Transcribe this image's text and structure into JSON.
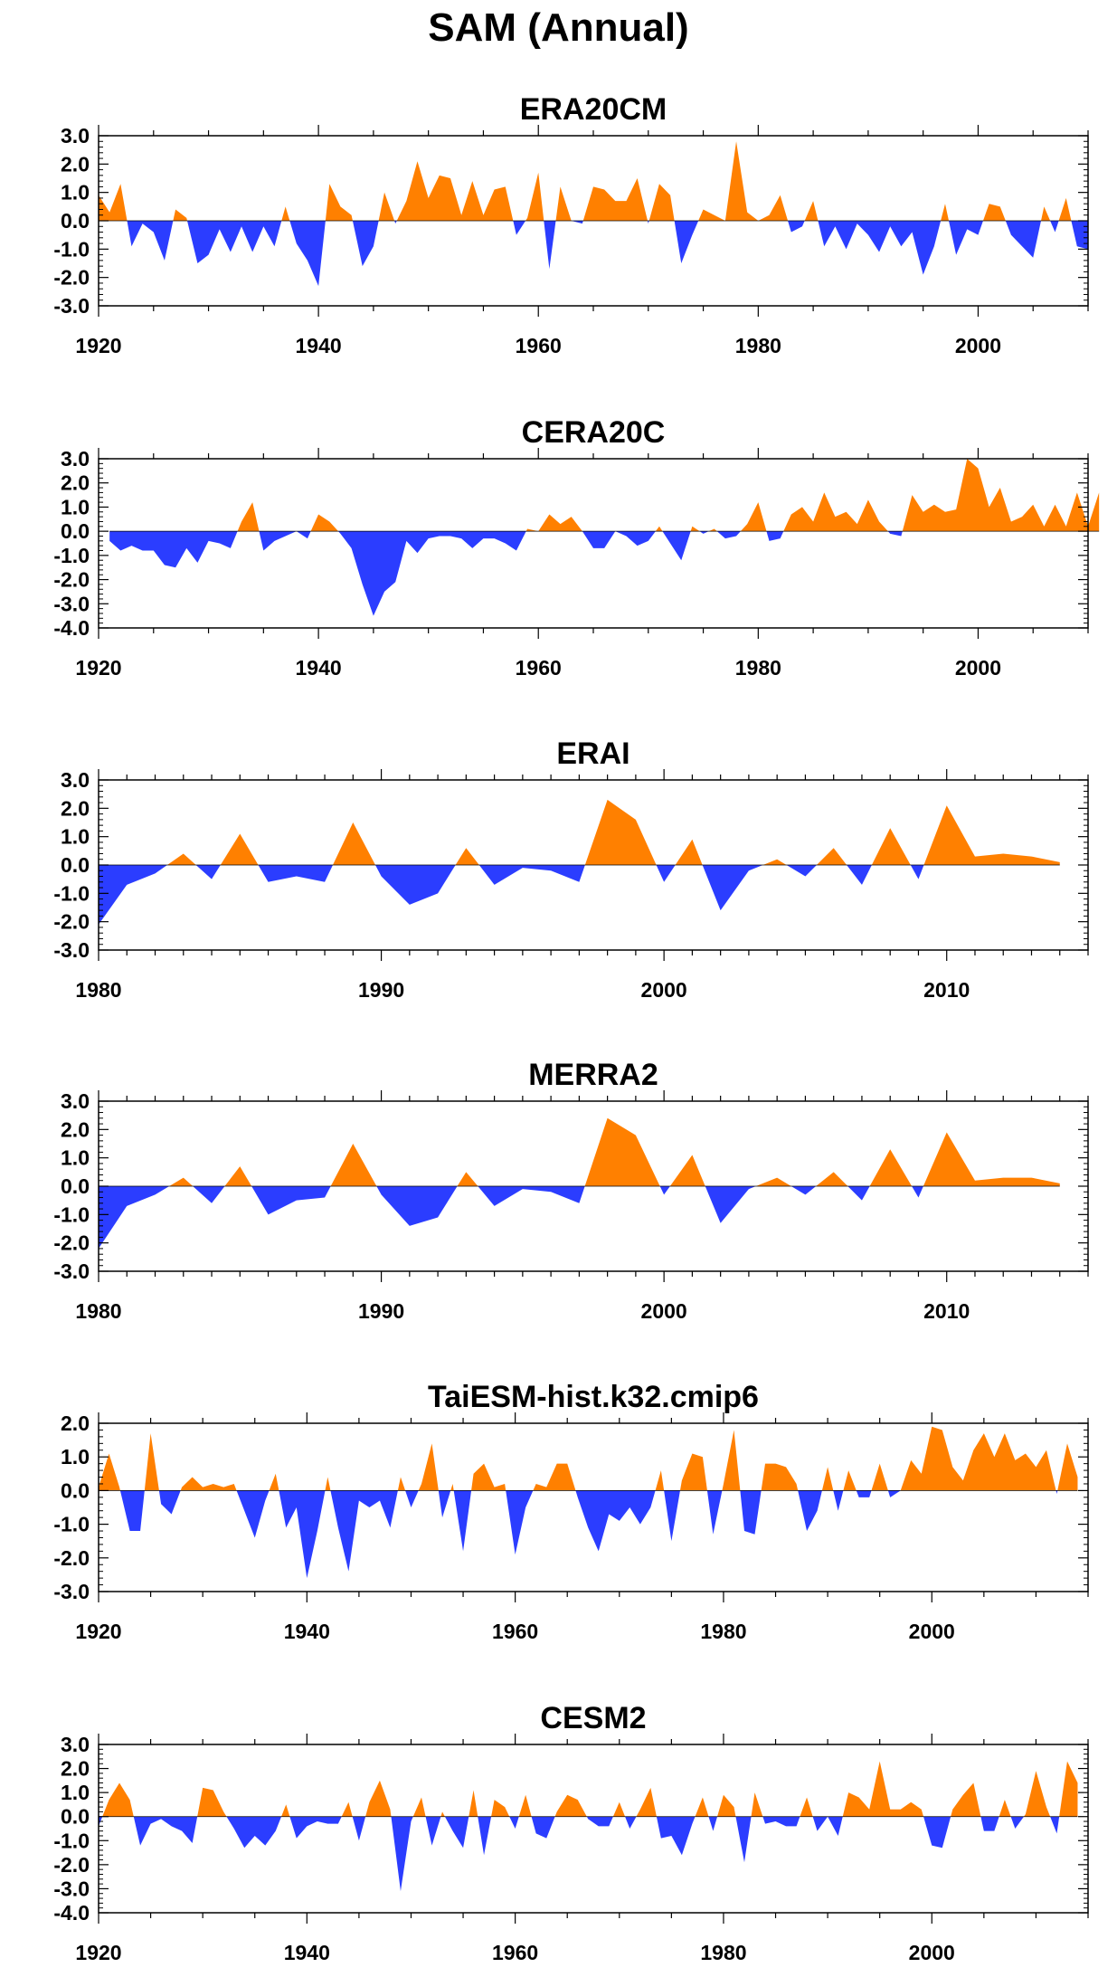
{
  "title": "SAM (Annual)",
  "colors": {
    "positive": "#ff8000",
    "negative": "#2b3dff"
  },
  "chart_data": [
    {
      "type": "area",
      "title": "ERA20CM",
      "xlim": [
        1920,
        2010
      ],
      "ylim": [
        -3.0,
        3.0
      ],
      "yticks": [
        "3.0",
        "2.0",
        "1.0",
        "0.0",
        "-1.0",
        "-2.0",
        "-3.0"
      ],
      "xticks": [
        "1920",
        "1940",
        "1960",
        "1980",
        "2000"
      ],
      "x_start": 1920,
      "values": [
        0.9,
        0.3,
        1.3,
        -0.9,
        -0.1,
        -0.4,
        -1.4,
        0.4,
        0.1,
        -1.5,
        -1.2,
        -0.3,
        -1.1,
        -0.2,
        -1.1,
        -0.2,
        -0.9,
        0.5,
        -0.8,
        -1.4,
        -2.3,
        1.3,
        0.5,
        0.2,
        -1.6,
        -0.9,
        1.0,
        -0.1,
        0.7,
        2.1,
        0.8,
        1.6,
        1.5,
        0.2,
        1.4,
        0.2,
        1.1,
        1.2,
        -0.5,
        0.1,
        1.7,
        -1.7,
        1.2,
        0.0,
        -0.1,
        1.2,
        1.1,
        0.7,
        0.7,
        1.5,
        -0.1,
        1.3,
        0.9,
        -1.5,
        -0.5,
        0.4,
        0.2,
        0.0,
        2.8,
        0.3,
        0.0,
        0.2,
        0.9,
        -0.4,
        -0.2,
        0.7,
        -0.9,
        -0.2,
        -1.0,
        -0.1,
        -0.5,
        -1.1,
        -0.2,
        -0.9,
        -0.4,
        -1.9,
        -0.9,
        0.6,
        -1.2,
        -0.3,
        -0.5,
        0.6,
        0.5,
        -0.5,
        -0.9,
        -1.3,
        0.5,
        -0.4,
        0.8,
        -0.9,
        -1.0
      ]
    },
    {
      "type": "area",
      "title": "CERA20C",
      "xlim": [
        1920,
        2010
      ],
      "ylim": [
        -4.0,
        3.0
      ],
      "yticks": [
        "3.0",
        "2.0",
        "1.0",
        "0.0",
        "-1.0",
        "-2.0",
        "-3.0",
        "-4.0"
      ],
      "xticks": [
        "1920",
        "1940",
        "1960",
        "1980",
        "2000"
      ],
      "x_start": 1921,
      "values": [
        -0.4,
        -0.8,
        -0.6,
        -0.8,
        -0.8,
        -1.4,
        -1.5,
        -0.7,
        -1.3,
        -0.4,
        -0.5,
        -0.7,
        0.4,
        1.2,
        -0.8,
        -0.4,
        -0.2,
        0.0,
        -0.3,
        0.7,
        0.4,
        -0.1,
        -0.7,
        -2.2,
        -3.5,
        -2.5,
        -2.1,
        -0.4,
        -0.9,
        -0.3,
        -0.2,
        -0.2,
        -0.3,
        -0.7,
        -0.3,
        -0.3,
        -0.5,
        -0.8,
        0.1,
        0.0,
        0.7,
        0.3,
        0.6,
        0.0,
        -0.7,
        -0.7,
        0.0,
        -0.2,
        -0.6,
        -0.4,
        0.2,
        -0.5,
        -1.2,
        0.2,
        -0.1,
        0.1,
        -0.3,
        -0.2,
        0.3,
        1.2,
        -0.4,
        -0.3,
        0.7,
        1.0,
        0.4,
        1.6,
        0.6,
        0.8,
        0.3,
        1.3,
        0.4,
        -0.1,
        -0.2,
        1.5,
        0.8,
        1.1,
        0.8,
        0.9,
        3.0,
        2.6,
        1.0,
        1.8,
        0.4,
        0.6,
        1.1,
        0.2,
        1.1,
        0.2,
        1.6,
        0.2,
        1.6
      ]
    },
    {
      "type": "area",
      "title": "ERAI",
      "xlim": [
        1980,
        2015
      ],
      "ylim": [
        -3.0,
        3.0
      ],
      "yticks": [
        "3.0",
        "2.0",
        "1.0",
        "0.0",
        "-1.0",
        "-2.0",
        "-3.0"
      ],
      "xticks": [
        "1980",
        "1990",
        "2000",
        "2010"
      ],
      "x_start": 1980,
      "values": [
        -2.1,
        -0.7,
        -0.3,
        0.4,
        -0.5,
        1.1,
        -0.6,
        -0.4,
        -0.6,
        1.5,
        -0.4,
        -1.4,
        -1.0,
        0.6,
        -0.7,
        -0.1,
        -0.2,
        -0.6,
        2.3,
        1.6,
        -0.6,
        0.9,
        -1.6,
        -0.2,
        0.2,
        -0.4,
        0.6,
        -0.7,
        1.3,
        -0.5,
        2.1,
        0.3,
        0.4,
        0.3,
        0.1
      ]
    },
    {
      "type": "area",
      "title": "MERRA2",
      "xlim": [
        1980,
        2015
      ],
      "ylim": [
        -3.0,
        3.0
      ],
      "yticks": [
        "3.0",
        "2.0",
        "1.0",
        "0.0",
        "-1.0",
        "-2.0",
        "-3.0"
      ],
      "xticks": [
        "1980",
        "1990",
        "2000",
        "2010"
      ],
      "x_start": 1980,
      "values": [
        -2.2,
        -0.7,
        -0.3,
        0.3,
        -0.6,
        0.7,
        -1.0,
        -0.5,
        -0.4,
        1.5,
        -0.3,
        -1.4,
        -1.1,
        0.5,
        -0.7,
        -0.1,
        -0.2,
        -0.6,
        2.4,
        1.8,
        -0.3,
        1.1,
        -1.3,
        -0.1,
        0.3,
        -0.3,
        0.5,
        -0.5,
        1.3,
        -0.4,
        1.9,
        0.2,
        0.3,
        0.3,
        0.1
      ]
    },
    {
      "type": "area",
      "title": "TaiESM-hist.k32.cmip6",
      "xlim": [
        1920,
        2015
      ],
      "ylim": [
        -3.0,
        2.0
      ],
      "yticks": [
        "2.0",
        "1.0",
        "0.0",
        "-1.0",
        "-2.0",
        "-3.0"
      ],
      "xticks": [
        "1920",
        "1940",
        "1960",
        "1980",
        "2000"
      ],
      "x_start": 1920,
      "values": [
        0.1,
        1.1,
        0.1,
        -1.2,
        -1.2,
        1.7,
        -0.4,
        -0.7,
        0.1,
        0.4,
        0.1,
        0.2,
        0.1,
        0.2,
        -0.6,
        -1.4,
        -0.3,
        0.5,
        -1.1,
        -0.5,
        -2.6,
        -1.2,
        0.4,
        -1.1,
        -2.4,
        -0.3,
        -0.5,
        -0.3,
        -1.1,
        0.4,
        -0.5,
        0.2,
        1.4,
        -0.8,
        0.2,
        -1.8,
        0.5,
        0.8,
        0.1,
        0.2,
        -1.9,
        -0.5,
        0.2,
        0.1,
        0.8,
        0.8,
        -0.2,
        -1.1,
        -1.8,
        -0.7,
        -0.9,
        -0.5,
        -1.0,
        -0.5,
        0.6,
        -1.5,
        0.3,
        1.1,
        1.0,
        -1.3,
        0.2,
        1.8,
        -1.2,
        -1.3,
        0.8,
        0.8,
        0.7,
        0.2,
        -1.2,
        -0.6,
        0.7,
        -0.6,
        0.6,
        -0.2,
        -0.2,
        0.8,
        -0.2,
        0.0,
        0.9,
        0.5,
        1.9,
        1.8,
        0.7,
        0.3,
        1.2,
        1.7,
        1.0,
        1.7,
        0.9,
        1.1,
        0.7,
        1.2,
        -0.1,
        1.4,
        0.4
      ]
    },
    {
      "type": "area",
      "title": "CESM2",
      "xlim": [
        1920,
        2015
      ],
      "ylim": [
        -4.0,
        3.0
      ],
      "yticks": [
        "3.0",
        "2.0",
        "1.0",
        "0.0",
        "-1.0",
        "-2.0",
        "-3.0",
        "-4.0"
      ],
      "xticks": [
        "1920",
        "1940",
        "1960",
        "1980",
        "2000"
      ],
      "x_start": 1920,
      "values": [
        -0.4,
        0.7,
        1.4,
        0.7,
        -1.2,
        -0.3,
        -0.1,
        -0.4,
        -0.6,
        -1.1,
        1.2,
        1.1,
        0.2,
        -0.5,
        -1.3,
        -0.8,
        -1.2,
        -0.6,
        0.5,
        -0.9,
        -0.4,
        -0.2,
        -0.3,
        -0.3,
        0.6,
        -1.0,
        0.6,
        1.5,
        0.3,
        -3.1,
        -0.2,
        0.8,
        -1.2,
        0.2,
        -0.6,
        -1.3,
        1.1,
        -1.6,
        0.7,
        0.4,
        -0.5,
        0.9,
        -0.7,
        -0.9,
        0.2,
        0.9,
        0.7,
        -0.1,
        -0.4,
        -0.4,
        0.6,
        -0.5,
        0.3,
        1.2,
        -0.9,
        -0.8,
        -1.6,
        -0.3,
        0.8,
        -0.6,
        0.9,
        0.4,
        -1.9,
        1.0,
        -0.3,
        -0.2,
        -0.4,
        -0.4,
        0.8,
        -0.6,
        0.0,
        -0.8,
        1.0,
        0.8,
        0.3,
        2.3,
        0.3,
        0.3,
        0.6,
        0.3,
        -1.2,
        -1.3,
        0.3,
        0.9,
        1.4,
        -0.6,
        -0.6,
        0.7,
        -0.5,
        0.1,
        1.9,
        0.4,
        -0.7,
        2.3,
        1.4
      ]
    }
  ]
}
